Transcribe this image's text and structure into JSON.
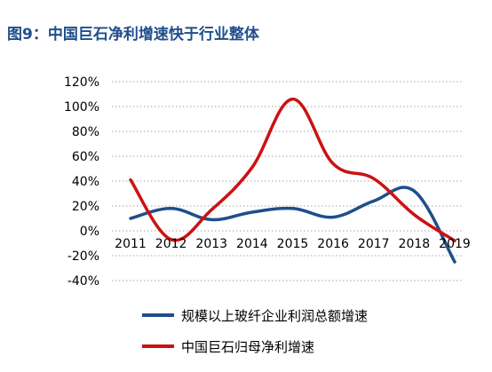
{
  "chart_data": {
    "type": "line",
    "title": "图9：中国巨石净利增速快于行业整体",
    "xlabel": "",
    "ylabel": "",
    "categories": [
      "2011",
      "2012",
      "2013",
      "2014",
      "2015",
      "2016",
      "2017",
      "2018",
      "2019"
    ],
    "yticks": [
      "120%",
      "100%",
      "80%",
      "60%",
      "40%",
      "20%",
      "0%",
      "-20%",
      "-40%"
    ],
    "ylim": [
      -0.4,
      1.2
    ],
    "grid": true,
    "legend_position": "bottom",
    "series": [
      {
        "name": "规模以上玻纤企业利润总额增速",
        "color": "#1f4e8c",
        "values": [
          0.1,
          0.18,
          0.09,
          0.15,
          0.18,
          0.11,
          0.24,
          0.32,
          -0.25
        ]
      },
      {
        "name": "中国巨石归母净利增速",
        "color": "#cc1111",
        "values": [
          0.41,
          -0.07,
          0.17,
          0.51,
          1.06,
          0.54,
          0.42,
          0.13,
          -0.08
        ]
      }
    ]
  }
}
